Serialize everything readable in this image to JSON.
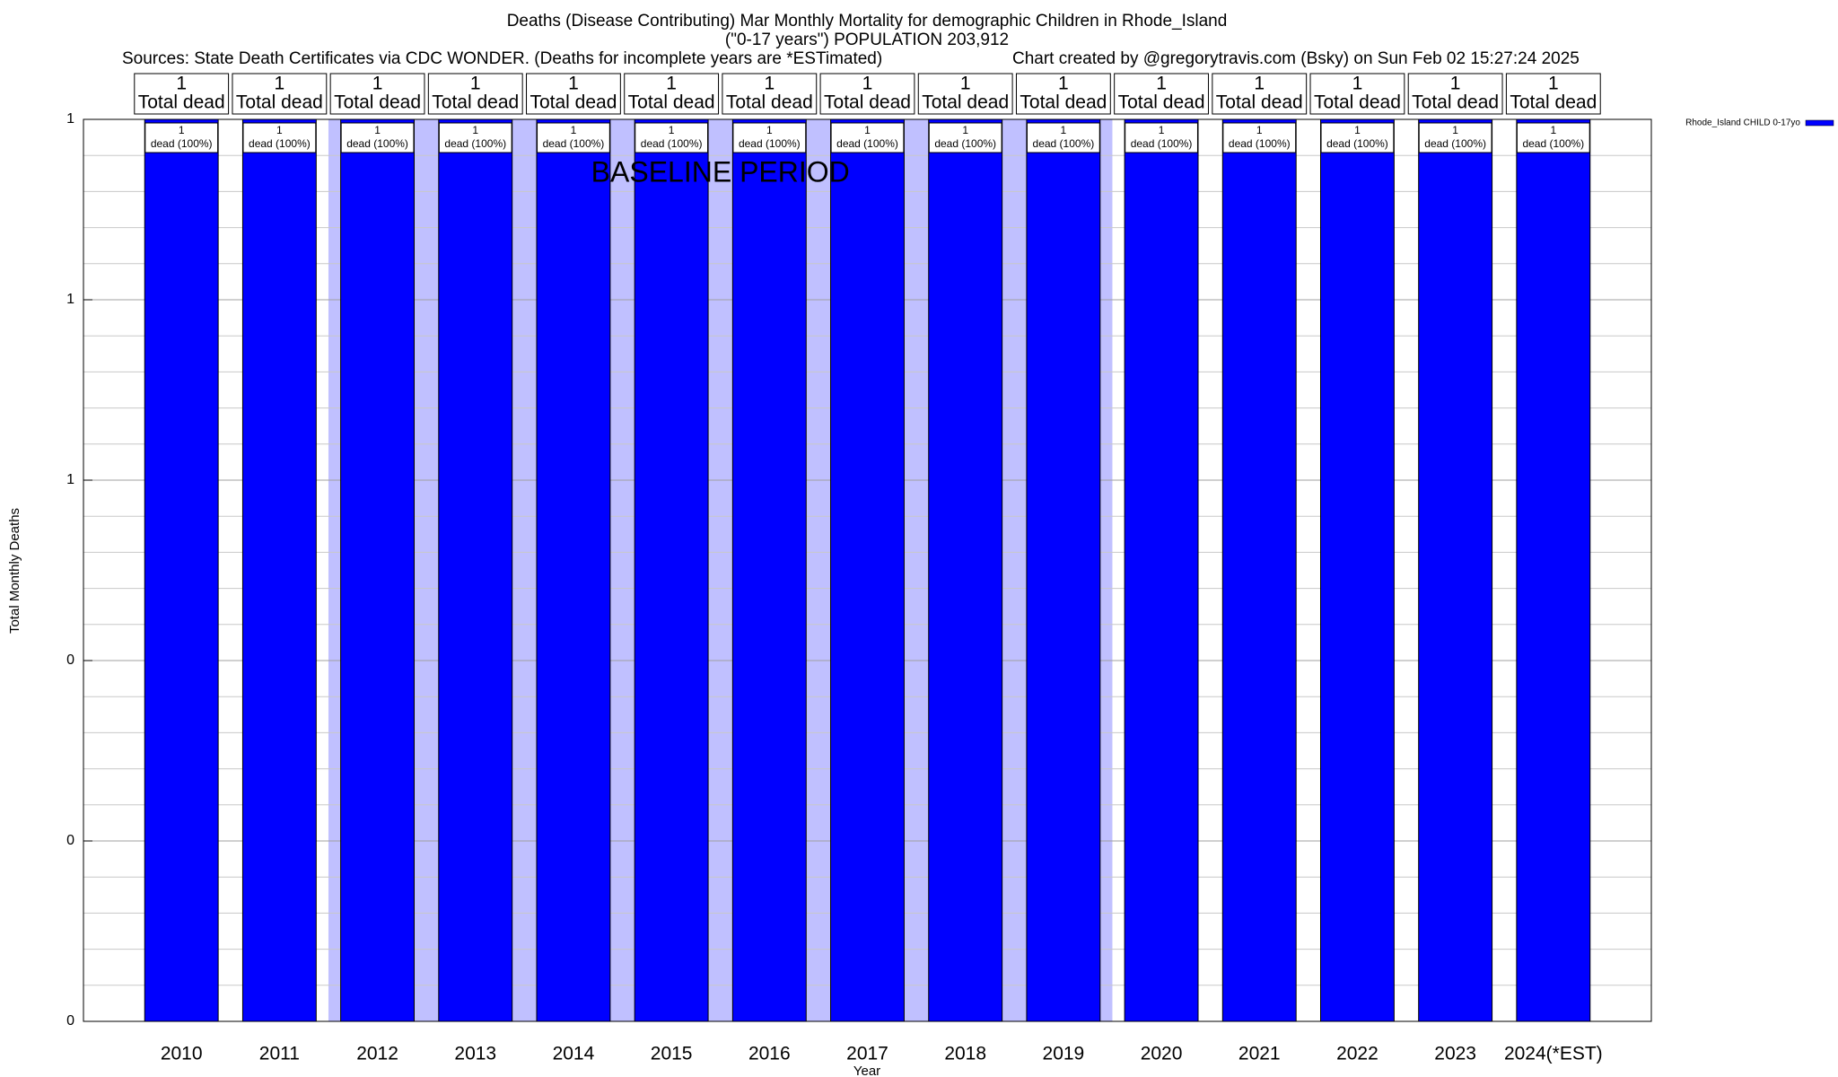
{
  "chart_data": {
    "type": "bar",
    "title": "Deaths (Disease Contributing) Mar Monthly Mortality for demographic Children in Rhode_Island",
    "subtitle": "(\"0-17 years\") POPULATION 203,912",
    "sources": "Sources: State Death Certificates via CDC WONDER. (Deaths for incomplete years are *ESTimated)",
    "credit": "Chart created by @gregorytravis.com (Bsky) on Sun Feb 02 15:27:24 2025",
    "x_label": "Year",
    "y_label": "Total Monthly Deaths",
    "categories": [
      "2010",
      "2011",
      "2012",
      "2013",
      "2014",
      "2015",
      "2016",
      "2017",
      "2018",
      "2019",
      "2020",
      "2021",
      "2022",
      "2023",
      "2024(*EST)"
    ],
    "series": [
      {
        "name": "Rhode_Island CHILD 0-17yo",
        "color": "#0000ff",
        "values": [
          1,
          1,
          1,
          1,
          1,
          1,
          1,
          1,
          1,
          1,
          1,
          1,
          1,
          1,
          1
        ]
      }
    ],
    "top_label_text": "Total dead",
    "bar_label_texts": [
      "dead (100%)",
      "dead (100%)",
      "dead (100%)",
      "dead (100%)",
      "dead (100%)",
      "dead (100%)",
      "dead (100%)",
      "dead (100%)",
      "dead (100%)",
      "dead (100%)",
      "dead (100%)",
      "dead (100%)",
      "dead (100%)",
      "dead (100%)",
      "dead (100%)"
    ],
    "baseline": {
      "label": "BASELINE PERIOD",
      "start": "2012",
      "end": "2019",
      "color": "#c0c0ff"
    },
    "ylim": [
      0,
      1
    ],
    "yticks": [
      0,
      {
        "value": 0.2,
        "label": "0"
      },
      {
        "value": 0.4,
        "label": "0"
      },
      {
        "value": 0.6,
        "label": "1"
      },
      {
        "value": 0.8,
        "label": "1"
      },
      1
    ],
    "minor_yticks": [
      0.04,
      0.08,
      0.12,
      0.16,
      0.24,
      0.28,
      0.32,
      0.36,
      0.44,
      0.48,
      0.52,
      0.56,
      0.64,
      0.68,
      0.72,
      0.76,
      0.84,
      0.88,
      0.92,
      0.96
    ],
    "grid": true,
    "legend": "top-right"
  }
}
